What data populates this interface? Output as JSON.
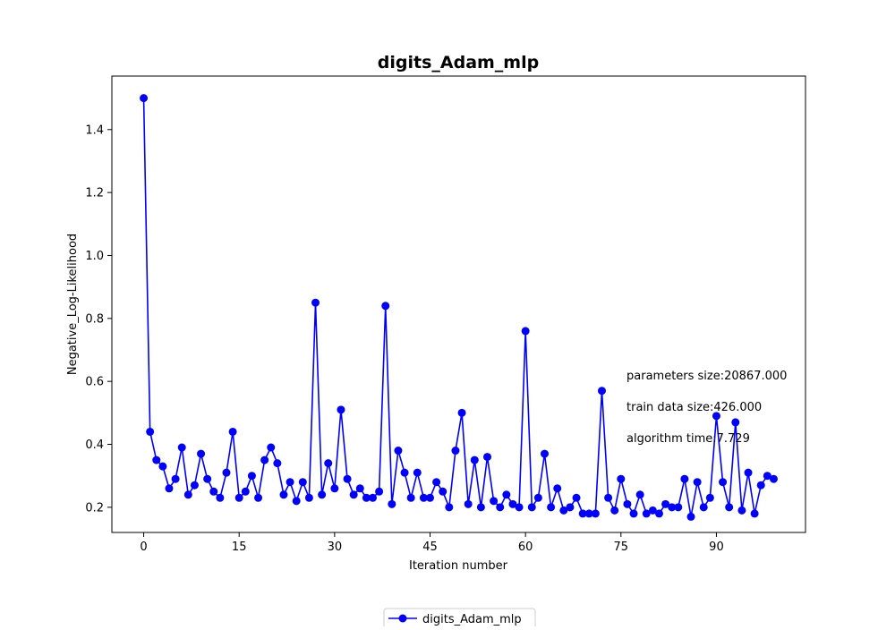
{
  "chart_data": {
    "type": "line",
    "title": "digits_Adam_mlp",
    "xlabel": "Iteration number",
    "ylabel": "Negative_Log-Likelihood",
    "xlim": [
      -5,
      104
    ],
    "ylim": [
      0.12,
      1.57
    ],
    "xticks": [
      0,
      15,
      30,
      45,
      60,
      75,
      90
    ],
    "yticks": [
      0.2,
      0.4,
      0.6,
      0.8,
      1.0,
      1.2,
      1.4
    ],
    "ytick_labels": [
      "0.2",
      "0.4",
      "0.6",
      "0.8",
      "1.0",
      "1.2",
      "1.4"
    ],
    "grid": false,
    "legend_position": "bottom-center",
    "series": [
      {
        "name": "digits_Adam_mlp",
        "color": "#0000ff",
        "marker": "circle",
        "x": [
          0,
          1,
          2,
          3,
          4,
          5,
          6,
          7,
          8,
          9,
          10,
          11,
          12,
          13,
          14,
          15,
          16,
          17,
          18,
          19,
          20,
          21,
          22,
          23,
          24,
          25,
          26,
          27,
          28,
          29,
          30,
          31,
          32,
          33,
          34,
          35,
          36,
          37,
          38,
          39,
          40,
          41,
          42,
          43,
          44,
          45,
          46,
          47,
          48,
          49,
          50,
          51,
          52,
          53,
          54,
          55,
          56,
          57,
          58,
          59,
          60,
          61,
          62,
          63,
          64,
          65,
          66,
          67,
          68,
          69,
          70,
          71,
          72,
          73,
          74,
          75,
          76,
          77,
          78,
          79,
          80,
          81,
          82,
          83,
          84,
          85,
          86,
          87,
          88,
          89,
          90,
          91,
          92,
          93,
          94,
          95,
          96,
          97,
          98,
          99
        ],
        "values": [
          1.5,
          0.44,
          0.35,
          0.33,
          0.26,
          0.29,
          0.39,
          0.24,
          0.27,
          0.37,
          0.29,
          0.25,
          0.23,
          0.31,
          0.44,
          0.23,
          0.25,
          0.3,
          0.23,
          0.35,
          0.39,
          0.34,
          0.24,
          0.28,
          0.22,
          0.28,
          0.23,
          0.85,
          0.24,
          0.34,
          0.26,
          0.51,
          0.29,
          0.24,
          0.26,
          0.23,
          0.23,
          0.25,
          0.84,
          0.21,
          0.38,
          0.31,
          0.23,
          0.31,
          0.23,
          0.23,
          0.28,
          0.25,
          0.2,
          0.38,
          0.5,
          0.21,
          0.35,
          0.2,
          0.36,
          0.22,
          0.2,
          0.24,
          0.21,
          0.2,
          0.76,
          0.2,
          0.23,
          0.37,
          0.2,
          0.26,
          0.19,
          0.2,
          0.23,
          0.18,
          0.18,
          0.18,
          0.57,
          0.23,
          0.19,
          0.29,
          0.21,
          0.18,
          0.24,
          0.18,
          0.19,
          0.18,
          0.21,
          0.2,
          0.2,
          0.29,
          0.17,
          0.28,
          0.2,
          0.23,
          0.49,
          0.28,
          0.2,
          0.47,
          0.19,
          0.31,
          0.18,
          0.27,
          0.3,
          0.29
        ]
      }
    ],
    "annotations": [
      "parameters size:20867.000",
      "train data size:426.000",
      "algorithm time:7.729"
    ]
  }
}
